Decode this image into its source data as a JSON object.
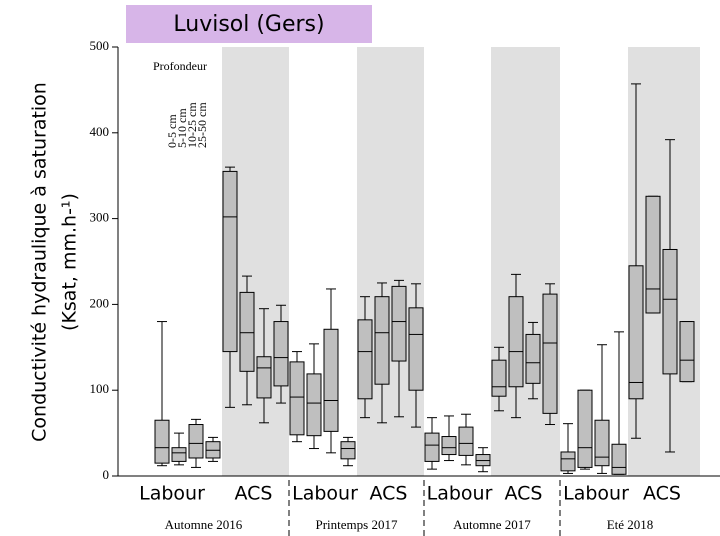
{
  "chart_data": {
    "type": "box",
    "title": "Luvisol (Gers)",
    "y_label": [
      "Conductivité hydraulique à saturation",
      "(Ksat, mm.h-¹)"
    ],
    "legend_title": "Profondeur",
    "categories": [
      "Labour",
      "ACS",
      "Labour",
      "ACS",
      "Labour",
      "ACS",
      "Labour",
      "ACS"
    ],
    "groups": [
      "Automne 2016",
      "Printemps 2017",
      "Automne 2017",
      "Eté 2018"
    ],
    "ylim": [
      0,
      500
    ],
    "yticks": [
      0,
      100,
      200,
      300,
      400,
      500
    ],
    "box_color": "#bfbfbf",
    "shade_color": "#e0e0e0",
    "series": [
      {
        "name": "0-5 cm",
        "values": [
          [
            12,
            15,
            33,
            65,
            180
          ],
          [
            80,
            145,
            302,
            355,
            360
          ],
          [
            40,
            48,
            92,
            133,
            145
          ],
          [
            68,
            90,
            145,
            182,
            209
          ],
          [
            8,
            17,
            36,
            50,
            68
          ],
          [
            76,
            93,
            104,
            135,
            150
          ],
          [
            3,
            6,
            20,
            28,
            61
          ],
          [
            44,
            90,
            109,
            245,
            457
          ]
        ]
      },
      {
        "name": "5-10 cm",
        "values": [
          [
            13,
            17,
            27,
            33,
            50
          ],
          [
            83,
            122,
            167,
            214,
            233
          ],
          [
            32,
            47,
            85,
            119,
            154
          ],
          [
            62,
            107,
            167,
            209,
            225
          ],
          [
            18,
            25,
            33,
            46,
            70
          ],
          [
            68,
            104,
            145,
            209,
            235
          ],
          [
            8,
            10,
            33,
            100,
            100
          ],
          [
            190,
            190,
            218,
            326,
            326
          ]
        ]
      },
      {
        "name": "10-25 cm",
        "values": [
          [
            10,
            21,
            38,
            60,
            66
          ],
          [
            62,
            91,
            126,
            139,
            195
          ],
          [
            27,
            52,
            88,
            171,
            218
          ],
          [
            69,
            134,
            180,
            221,
            228
          ],
          [
            13,
            24,
            38,
            57,
            72
          ],
          [
            90,
            108,
            132,
            165,
            179
          ],
          [
            3,
            12,
            22,
            65,
            153
          ],
          [
            28,
            119,
            206,
            264,
            392
          ]
        ]
      },
      {
        "name": "25-50 cm",
        "values": [
          [
            17,
            21,
            30,
            40,
            45
          ],
          [
            85,
            105,
            138,
            180,
            199
          ],
          [
            12,
            20,
            32,
            40,
            45
          ],
          [
            57,
            100,
            165,
            196,
            224
          ],
          [
            5,
            12,
            18,
            25,
            33
          ],
          [
            60,
            73,
            155,
            212,
            224
          ],
          [
            2,
            2,
            10,
            37,
            168
          ],
          [
            110,
            110,
            135,
            180,
            180
          ]
        ]
      }
    ]
  }
}
